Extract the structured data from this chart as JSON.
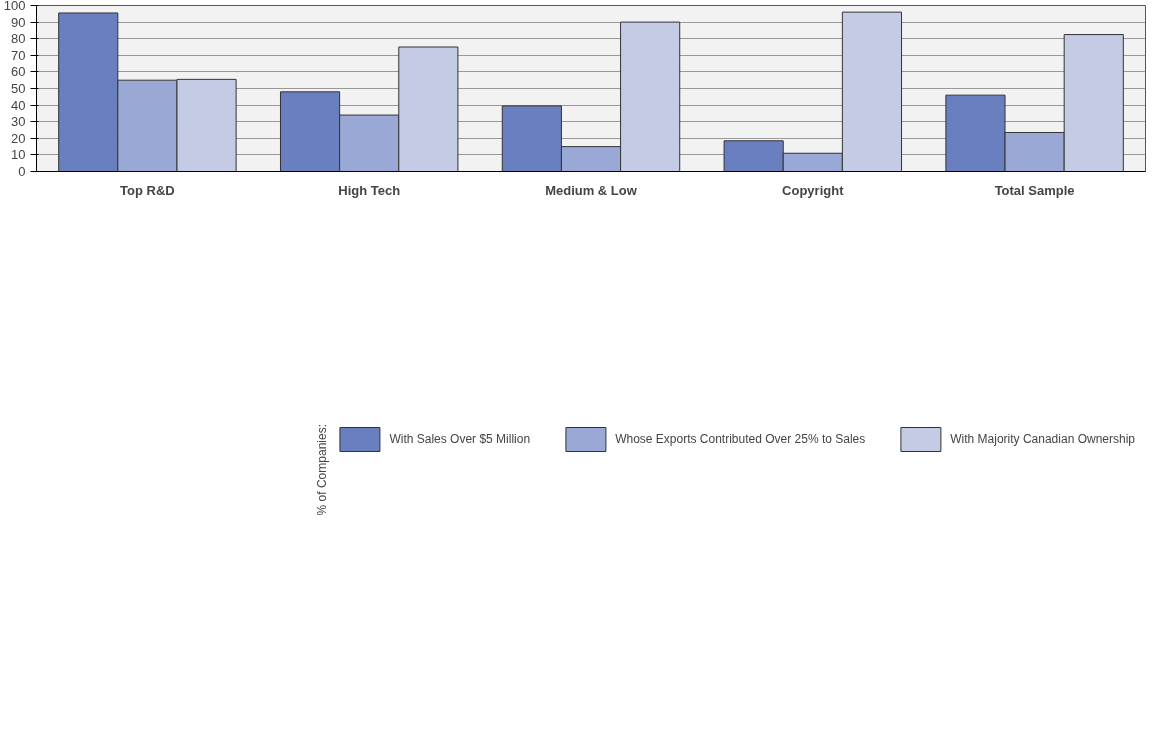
{
  "chart_data": {
    "type": "bar",
    "categories": [
      "Top R&D",
      "High Tech",
      "Medium & Low",
      "Copyright",
      "Total Sample"
    ],
    "series": [
      {
        "name": "With Sales Over $5 Million",
        "color": "#6a7fc0",
        "values": [
          95.5,
          48,
          39.5,
          18.5,
          46
        ]
      },
      {
        "name": "Whose Exports Contributed Over 25% to Sales",
        "color": "#99a8d4",
        "values": [
          55,
          34,
          15,
          11,
          23.5
        ]
      },
      {
        "name": "With Majority Canadian Ownership",
        "color": "#c4cbe5",
        "values": [
          55.5,
          75,
          90,
          96,
          82.5
        ]
      }
    ],
    "legend_title": "% of Companies:",
    "legend": "bottom",
    "ylim": [
      0,
      100
    ],
    "yticks": [
      0,
      10,
      20,
      30,
      40,
      50,
      60,
      70,
      80,
      90,
      100
    ],
    "grid": "y"
  }
}
